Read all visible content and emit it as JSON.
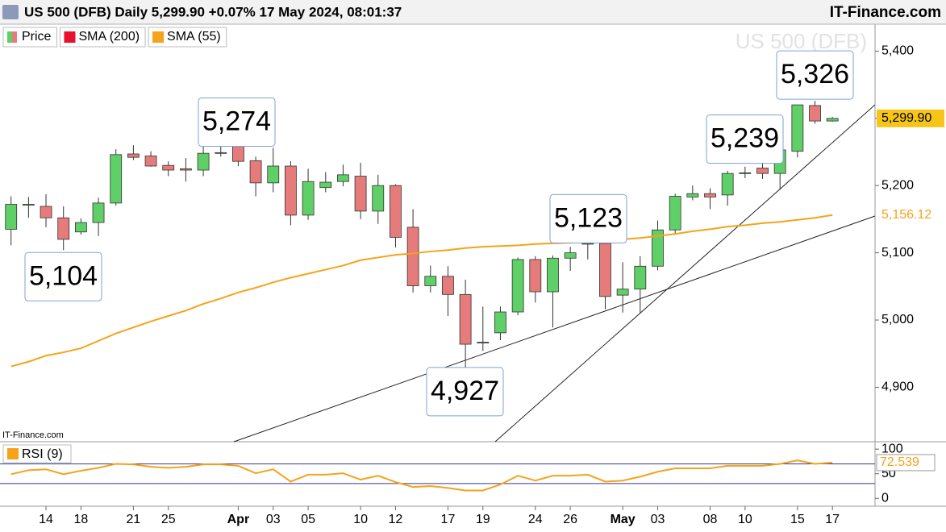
{
  "header": {
    "title": "US 500 (DFB) Daily 5,299.90 +0.07% 17 May 2024, 08:01:37",
    "brand": "IT-Finance.com"
  },
  "chart_data": [
    {
      "type": "candlestick",
      "watermark": "US 500 (DFB)",
      "source": "IT-Finance.com",
      "categories": [
        null,
        null,
        "14",
        null,
        "18",
        null,
        null,
        "21",
        null,
        "25",
        null,
        null,
        null,
        "Apr",
        null,
        "03",
        null,
        "05",
        null,
        null,
        "10",
        null,
        "12",
        null,
        null,
        "17",
        null,
        "19",
        null,
        null,
        "24",
        null,
        "26",
        null,
        null,
        "May",
        null,
        "03",
        null,
        null,
        "08",
        null,
        "10",
        null,
        null,
        "15",
        null,
        "17"
      ],
      "ylim": [
        4819,
        5440
      ],
      "yticks": [
        {
          "value": 4900,
          "label": "4,900"
        },
        {
          "value": 5000,
          "label": "5,000"
        },
        {
          "value": 5100,
          "label": "5,100"
        },
        {
          "value": 5200,
          "label": "5,200"
        },
        {
          "value": 5300,
          "label": "5,300"
        },
        {
          "value": 5400,
          "label": "5,400"
        }
      ],
      "series": [
        {
          "name": "Price",
          "up_color": "#5fcf67",
          "down_color": "#e67b7b",
          "color": "#5fcf67",
          "last_label": "5,299.90",
          "open": [
            5135,
            5171,
            5169,
            5152,
            5131,
            5145,
            5174,
            5247,
            5244,
            5230,
            5225,
            5223,
            5248,
            5272,
            5237,
            5204,
            5229,
            5156,
            5197,
            5206,
            5214,
            5162,
            5200,
            5138,
            5051,
            5065,
            5038,
            4966,
            4981,
            5012,
            5090,
            5042,
            5092,
            5114,
            5114,
            5037,
            5046,
            5080,
            5134,
            5183,
            5188,
            5186,
            5218,
            5226,
            5218,
            5251,
            5319,
            5296
          ],
          "high": [
            5184,
            5183,
            5187,
            5169,
            5151,
            5182,
            5254,
            5260,
            5251,
            5236,
            5241,
            5260,
            5261,
            5274,
            5243,
            5256,
            5236,
            5225,
            5220,
            5231,
            5234,
            5216,
            5202,
            5165,
            5081,
            5080,
            5060,
            5020,
            5020,
            5093,
            5095,
            5096,
            5109,
            5127,
            5121,
            5086,
            5095,
            5148,
            5188,
            5200,
            5196,
            5222,
            5228,
            5236,
            5254,
            5320,
            5326,
            5302
          ],
          "low": [
            5111,
            5152,
            5138,
            5104,
            5127,
            5125,
            5170,
            5238,
            5228,
            5214,
            5206,
            5214,
            5243,
            5229,
            5184,
            5190,
            5141,
            5149,
            5190,
            5199,
            5150,
            5143,
            5108,
            5041,
            5041,
            5006,
            4927,
            4954,
            4970,
            5007,
            5026,
            4989,
            5073,
            5090,
            5016,
            5011,
            5011,
            5074,
            5128,
            5178,
            5165,
            5170,
            5211,
            5210,
            5195,
            5242,
            5292,
            5295
          ],
          "close": [
            5172,
            5172,
            5152,
            5120,
            5145,
            5174,
            5246,
            5242,
            5229,
            5223,
            5223,
            5248,
            5249,
            5236,
            5204,
            5229,
            5156,
            5206,
            5205,
            5216,
            5162,
            5200,
            5123,
            5051,
            5065,
            5038,
            4964,
            4967,
            5012,
            5090,
            5042,
            5092,
            5100,
            5113,
            5035,
            5046,
            5080,
            5134,
            5184,
            5188,
            5183,
            5218,
            5219,
            5218,
            5253,
            5320,
            5296,
            5299.9
          ]
        },
        {
          "name": "SMA (200)",
          "color": "#e8112d",
          "values": [
            null,
            null,
            null,
            null,
            null,
            null,
            null,
            null,
            null,
            null,
            null,
            null,
            null,
            null,
            null,
            null,
            null,
            null,
            null,
            null,
            null,
            null,
            null,
            null,
            null,
            null,
            null,
            null,
            null,
            null,
            null,
            null,
            null,
            null,
            null,
            null,
            null,
            null,
            null,
            null,
            null,
            null,
            null,
            null,
            null,
            null,
            null,
            null
          ]
        },
        {
          "name": "SMA (55)",
          "color": "#f5a31a",
          "last_label": "5,156.12",
          "values": [
            4931,
            4938,
            4947,
            4952,
            4958,
            4969,
            4980,
            4989,
            4998,
            5006,
            5014,
            5024,
            5032,
            5041,
            5048,
            5056,
            5063,
            5069,
            5075,
            5081,
            5089,
            5093,
            5097,
            5099,
            5102,
            5104,
            5107,
            5109,
            5110,
            5111,
            5113,
            5114,
            5115,
            5117,
            5119,
            5120,
            5122,
            5125,
            5128,
            5132,
            5135,
            5139,
            5141,
            5144,
            5146,
            5149,
            5152,
            5156.12
          ]
        }
      ],
      "annotations": [
        {
          "value": 5104,
          "label": "5,104"
        },
        {
          "value": 5274,
          "label": "5,274"
        },
        {
          "value": 4927,
          "label": "4,927"
        },
        {
          "value": 5123,
          "label": "5,123"
        },
        {
          "value": 5239,
          "label": "5,239"
        },
        {
          "value": 5326,
          "label": "5,326"
        }
      ]
    },
    {
      "type": "line",
      "ylim": [
        -16,
        115
      ],
      "yticks": [
        0,
        50,
        100
      ],
      "levels": [
        70,
        30
      ],
      "level_color": "#343894",
      "series": [
        {
          "name": "RSI (9)",
          "color": "#f5a31a",
          "last_label": "72.539",
          "values": [
            49,
            57,
            59,
            49,
            56,
            62,
            70,
            69,
            64,
            62,
            64,
            69,
            69,
            66,
            51,
            59,
            34,
            48,
            48,
            51,
            38,
            46,
            33,
            23,
            25,
            21,
            16,
            16,
            28,
            46,
            36,
            46,
            46,
            48,
            34,
            36,
            44,
            54,
            61,
            61,
            61,
            66,
            66,
            66,
            70,
            77,
            70,
            72.539
          ]
        }
      ]
    }
  ]
}
